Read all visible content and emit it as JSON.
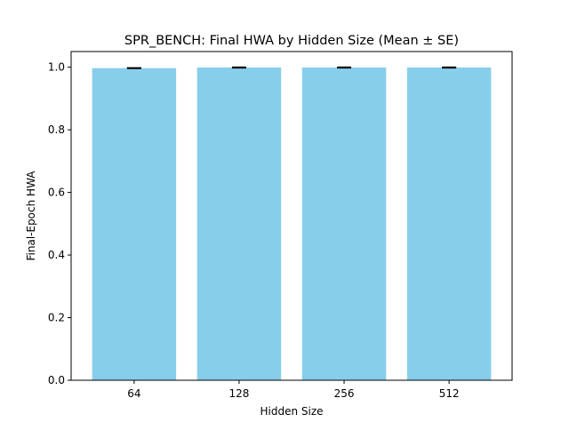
{
  "chart_data": {
    "type": "bar",
    "title": "SPR_BENCH: Final HWA by Hidden Size (Mean ± SE)",
    "xlabel": "Hidden Size",
    "ylabel": "Final-Epoch HWA",
    "categories": [
      "64",
      "128",
      "256",
      "512"
    ],
    "values": [
      0.997,
      0.999,
      0.999,
      0.999
    ],
    "errors": [
      0.001,
      0.001,
      0.001,
      0.001
    ],
    "ylim": [
      0,
      1.05
    ],
    "yticks": [
      0.0,
      0.2,
      0.4,
      0.6,
      0.8,
      1.0
    ],
    "ytick_labels": [
      "0.0",
      "0.2",
      "0.4",
      "0.6",
      "0.8",
      "1.0"
    ],
    "grid": false,
    "bar_color": "#87ceeb",
    "error_color": "#000000"
  }
}
